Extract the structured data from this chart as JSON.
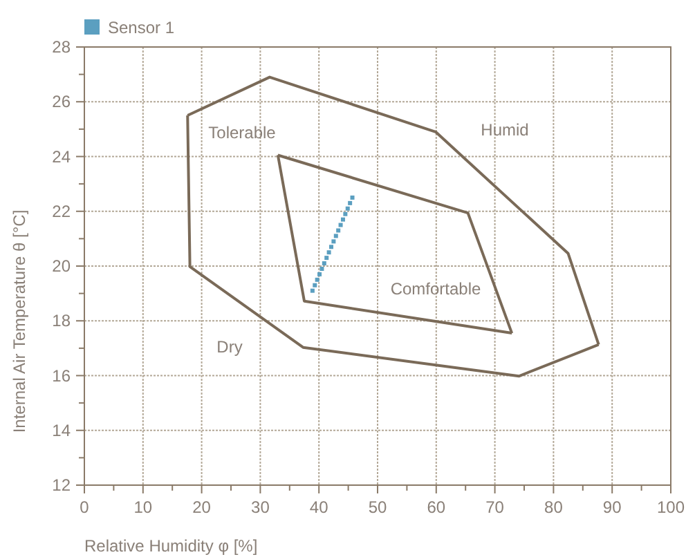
{
  "chart_data": {
    "type": "scatter",
    "xlabel": "Relative Humidity φ [%]",
    "ylabel": "Internal Air Temperature θ [°C]",
    "xlim": [
      0,
      100
    ],
    "ylim": [
      12,
      28
    ],
    "xticks": [
      0,
      {
        "value": 5,
        "label": null
      },
      10,
      {
        "value": 15,
        "label": null
      },
      20,
      {
        "value": 25,
        "label": null
      },
      30,
      {
        "value": 35,
        "label": null
      },
      40,
      {
        "value": 45,
        "label": null
      },
      50,
      {
        "value": 55,
        "label": null
      },
      60,
      {
        "value": 65,
        "label": null
      },
      70,
      {
        "value": 75,
        "label": null
      },
      80,
      {
        "value": 85,
        "label": null
      },
      90,
      {
        "value": 95,
        "label": null
      },
      100
    ],
    "yticks": [
      12,
      {
        "value": 13,
        "label": null
      },
      14,
      {
        "value": 15,
        "label": null
      },
      16,
      {
        "value": 17,
        "label": null
      },
      18,
      {
        "value": 19,
        "label": null
      },
      20,
      {
        "value": 21,
        "label": null
      },
      22,
      {
        "value": 23,
        "label": null
      },
      24,
      {
        "value": 25,
        "label": null
      },
      26,
      {
        "value": 27,
        "label": null
      },
      28
    ],
    "grid": true,
    "legend": "top left",
    "series": [
      {
        "type": "line",
        "color": "#7a6a58",
        "marker": "none",
        "line_style": "solid",
        "x": [
          17.6,
          31.6,
          59.9,
          82.5,
          87.7
        ],
        "values": [
          25.5,
          26.9,
          24.9,
          20.46,
          17.13
        ]
      },
      {
        "type": "line",
        "color": "#7a6a58",
        "marker": "none",
        "line_style": "solid",
        "x": [
          17.6,
          18.0,
          37.3,
          74.1,
          87.7
        ],
        "values": [
          25.5,
          19.98,
          17.03,
          15.98,
          17.13
        ]
      },
      {
        "type": "line",
        "color": "#7a6a58",
        "marker": "none",
        "line_style": "solid",
        "x": [
          33.0,
          65.4,
          72.9
        ],
        "values": [
          24.05,
          21.94,
          17.55
        ]
      },
      {
        "type": "line",
        "color": "#7a6a58",
        "marker": "none",
        "line_style": "solid",
        "x": [
          33.0,
          37.5,
          72.9
        ],
        "values": [
          24.05,
          18.72,
          17.55
        ]
      },
      {
        "name": "Sensor 1",
        "color": "#5b9fc0",
        "marker": "square",
        "x": [
          38.9,
          39.3,
          39.7,
          40.1,
          40.5,
          40.9,
          41.3,
          41.7,
          42.1,
          42.5,
          42.9,
          43.3,
          43.7,
          44.1,
          44.5,
          44.9,
          45.3,
          45.7
        ],
        "values": [
          19.1,
          19.3,
          19.5,
          19.7,
          19.9,
          20.1,
          20.3,
          20.5,
          20.7,
          20.9,
          21.1,
          21.3,
          21.5,
          21.7,
          21.9,
          22.1,
          22.3,
          22.5
        ]
      }
    ],
    "annotations": [
      "Tolerable",
      "Humid",
      "Comfortable",
      "Dry"
    ]
  }
}
